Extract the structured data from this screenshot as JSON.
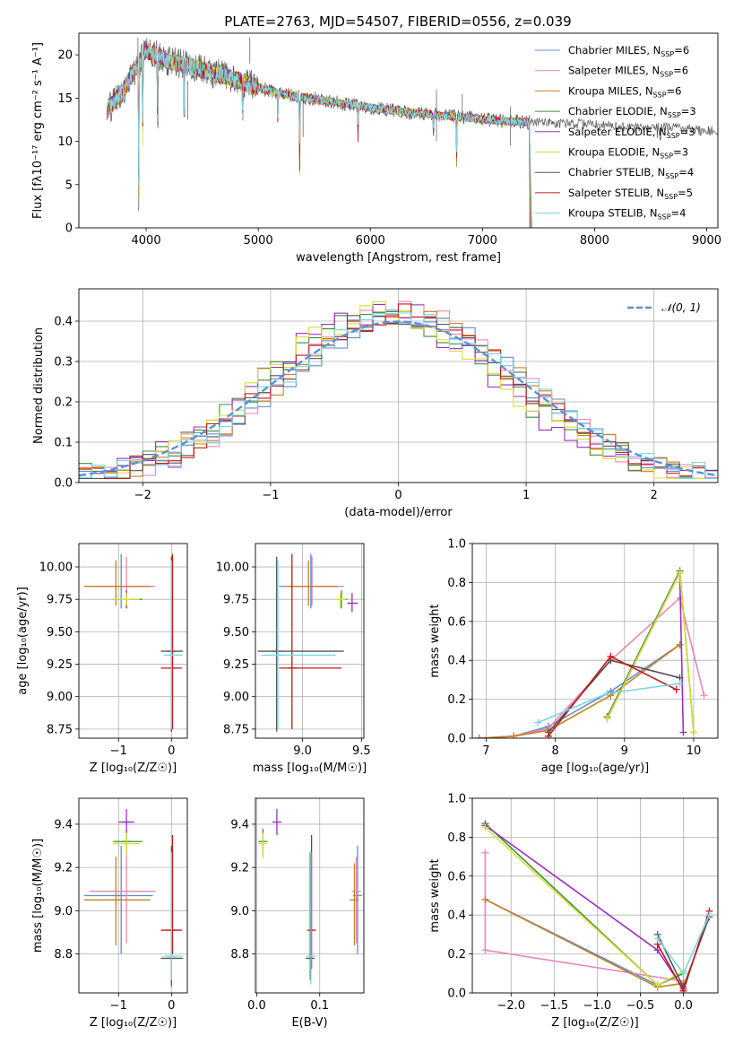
{
  "figure_title": "PLATE=2763, MJD=54507, FIBERID=0556, z=0.039",
  "series": [
    {
      "name": "Chabrier MILES",
      "nssp": "6",
      "color": "#5b8fd6"
    },
    {
      "name": "Salpeter MILES",
      "nssp": "6",
      "color": "#e887b8"
    },
    {
      "name": "Kroupa MILES",
      "nssp": "6",
      "color": "#c8821e"
    },
    {
      "name": "Chabrier ELODIE",
      "nssp": "3",
      "color": "#3f8f3f"
    },
    {
      "name": "Salpeter ELODIE",
      "nssp": "3",
      "color": "#9a2fc0"
    },
    {
      "name": "Kroupa ELODIE",
      "nssp": "3",
      "color": "#d8e030"
    },
    {
      "name": "Chabrier STELIB",
      "nssp": "4",
      "color": "#555555"
    },
    {
      "name": "Salpeter STELIB",
      "nssp": "5",
      "color": "#c41a1a"
    },
    {
      "name": "Kroupa STELIB",
      "nssp": "4",
      "color": "#7ad6e6"
    }
  ],
  "chart_data": [
    {
      "type": "line",
      "title": "PLATE=2763, MJD=54507, FIBERID=0556, z=0.039",
      "xlabel": "wavelength [Angstrom, rest frame]",
      "ylabel": "Flux [fλ10⁻¹⁷ erg cm⁻² s⁻¹ A⁻¹]",
      "xlim": [
        3400,
        9100
      ],
      "ylim": [
        0,
        22.5
      ],
      "xticks": [
        4000,
        5000,
        6000,
        7000,
        8000,
        9000
      ],
      "yticks": [
        0,
        5,
        10,
        15,
        20
      ],
      "spectrum": {
        "x": [
          3650,
          3800,
          4000,
          4150,
          4300,
          4500,
          4700,
          4900,
          5100,
          5300,
          5500,
          5700,
          5900,
          6100,
          6300,
          6500,
          6700,
          6900,
          7100,
          7300,
          7420
        ],
        "y": [
          13.5,
          16,
          20.5,
          19.5,
          19,
          18.3,
          17.5,
          16.7,
          15.8,
          15.3,
          14.9,
          14.5,
          14.1,
          13.7,
          13.4,
          13.2,
          12.9,
          12.7,
          12.4,
          12.3,
          12.2
        ]
      },
      "observed_tail": {
        "x": [
          7420,
          7700,
          8000,
          8300,
          8600,
          8900,
          9100
        ],
        "y": [
          12.2,
          12.1,
          11.9,
          11.6,
          11.6,
          11.3,
          11.2
        ]
      },
      "legend_loc": "upper right"
    },
    {
      "type": "step",
      "xlabel": "(data-model)/error",
      "ylabel": "Normed distribution",
      "xlim": [
        -2.5,
        2.5
      ],
      "ylim": [
        0,
        0.48
      ],
      "xticks": [
        -2,
        -1,
        0,
        1,
        2
      ],
      "yticks": [
        0.0,
        0.1,
        0.2,
        0.3,
        0.4
      ],
      "bin_edges_start": -2.5,
      "bin_width": 0.1,
      "normal_label": "𝒩(0, 1)",
      "normal_color": "#5b8fd6",
      "legend_loc": "upper right"
    },
    {
      "type": "errorbar",
      "xlabel": "Z [log₁₀(Z/Z☉)]",
      "ylabel": "age  [log₁₀(age/yr)]",
      "xlim": [
        -1.75,
        0.3
      ],
      "ylim": [
        8.68,
        10.18
      ],
      "xticks": [
        -1,
        0
      ],
      "yticks": [
        8.75,
        9.0,
        9.25,
        9.5,
        9.75,
        10.0
      ],
      "points": [
        {
          "s": 0,
          "x": -0.95,
          "y": 9.85,
          "xe": [
            -1.65,
            -0.35
          ],
          "ye": [
            9.68,
            10.1
          ]
        },
        {
          "s": 1,
          "x": -0.85,
          "y": 9.85,
          "xe": [
            -1.55,
            -0.3
          ],
          "ye": [
            9.7,
            10.08
          ]
        },
        {
          "s": 2,
          "x": -1.05,
          "y": 9.85,
          "xe": [
            -1.65,
            -0.4
          ],
          "ye": [
            9.7,
            10.05
          ]
        },
        {
          "s": 3,
          "x": -0.85,
          "y": 9.75,
          "xe": [
            -1.1,
            -0.55
          ],
          "ye": [
            9.68,
            9.8
          ]
        },
        {
          "s": 4,
          "x": -0.85,
          "y": 9.75,
          "xe": [
            -1.0,
            -0.7
          ],
          "ye": [
            9.68,
            9.82
          ]
        },
        {
          "s": 5,
          "x": -0.85,
          "y": 9.75,
          "xe": [
            -1.1,
            -0.6
          ],
          "ye": [
            9.7,
            9.8
          ]
        },
        {
          "s": 6,
          "x": 0.0,
          "y": 9.35,
          "xe": [
            -0.2,
            0.22
          ],
          "ye": [
            8.73,
            10.08
          ]
        },
        {
          "s": 7,
          "x": 0.02,
          "y": 9.22,
          "xe": [
            -0.2,
            0.2
          ],
          "ye": [
            8.75,
            10.1
          ]
        },
        {
          "s": 8,
          "x": 0.0,
          "y": 9.32,
          "xe": [
            -0.15,
            0.2
          ],
          "ye": [
            8.75,
            10.05
          ]
        }
      ]
    },
    {
      "type": "errorbar",
      "xlabel": "mass [log₁₀(M/M☉)]",
      "ylabel": "",
      "xlim": [
        8.6,
        9.52
      ],
      "ylim": [
        8.68,
        10.18
      ],
      "xticks": [
        9.0,
        9.5
      ],
      "yticks": [
        8.75,
        9.0,
        9.25,
        9.5,
        9.75,
        10.0
      ],
      "points": [
        {
          "s": 0,
          "x": 9.07,
          "y": 9.85,
          "xe": [
            8.8,
            9.35
          ],
          "ye": [
            9.68,
            10.1
          ]
        },
        {
          "s": 1,
          "x": 9.08,
          "y": 9.85,
          "xe": [
            8.85,
            9.35
          ],
          "ye": [
            9.7,
            10.08
          ]
        },
        {
          "s": 2,
          "x": 9.05,
          "y": 9.85,
          "xe": [
            8.85,
            9.3
          ],
          "ye": [
            9.7,
            10.05
          ]
        },
        {
          "s": 3,
          "x": 9.33,
          "y": 9.75,
          "xe": [
            9.28,
            9.38
          ],
          "ye": [
            9.68,
            9.82
          ]
        },
        {
          "s": 4,
          "x": 9.42,
          "y": 9.72,
          "xe": [
            9.38,
            9.47
          ],
          "ye": [
            9.65,
            9.8
          ]
        },
        {
          "s": 5,
          "x": 9.32,
          "y": 9.75,
          "xe": [
            9.27,
            9.37
          ],
          "ye": [
            9.68,
            9.8
          ]
        },
        {
          "s": 6,
          "x": 8.78,
          "y": 9.35,
          "xe": [
            8.62,
            9.35
          ],
          "ye": [
            8.73,
            10.08
          ]
        },
        {
          "s": 7,
          "x": 8.91,
          "y": 9.22,
          "xe": [
            8.8,
            9.33
          ],
          "ye": [
            8.75,
            10.1
          ]
        },
        {
          "s": 8,
          "x": 8.79,
          "y": 9.32,
          "xe": [
            8.65,
            9.28
          ],
          "ye": [
            8.75,
            10.05
          ]
        }
      ]
    },
    {
      "type": "line",
      "xlabel": "age  [log₁₀(age/yr)]",
      "ylabel": "mass weight",
      "xlim": [
        6.8,
        10.35
      ],
      "ylim": [
        0,
        1.0
      ],
      "xticks": [
        7,
        8,
        9,
        10
      ],
      "yticks": [
        0.0,
        0.2,
        0.4,
        0.6,
        0.8,
        1.0
      ],
      "lines": [
        {
          "s": 0,
          "x": [
            6.9,
            7.4,
            7.9,
            8.8,
            9.8
          ],
          "y": [
            0.0,
            0.01,
            0.06,
            0.24,
            0.48
          ]
        },
        {
          "s": 1,
          "x": 6.9,
          "y": 0.0
        },
        {
          "s": 1,
          "x": [
            6.9,
            7.4,
            7.9,
            8.8,
            9.8,
            10.15
          ],
          "y": [
            0.0,
            0.01,
            0.05,
            0.4,
            0.72,
            0.22
          ]
        },
        {
          "s": 2,
          "x": [
            6.9,
            7.4,
            7.9,
            8.8,
            9.8
          ],
          "y": [
            0.0,
            0.01,
            0.04,
            0.22,
            0.48
          ]
        },
        {
          "s": 3,
          "x": [
            8.75,
            9.8,
            10.0
          ],
          "y": [
            0.11,
            0.86,
            0.03
          ]
        },
        {
          "s": 4,
          "x": [
            8.75,
            9.8,
            9.85
          ],
          "y": [
            0.1,
            0.85,
            0.03
          ]
        },
        {
          "s": 5,
          "x": [
            8.75,
            9.8,
            10.0
          ],
          "y": [
            0.1,
            0.85,
            0.03
          ]
        },
        {
          "s": 6,
          "x": [
            7.9,
            8.8,
            9.8
          ],
          "y": [
            0.03,
            0.4,
            0.31
          ]
        },
        {
          "s": 7,
          "x": [
            7.9,
            8.8,
            9.75
          ],
          "y": [
            0.01,
            0.42,
            0.25
          ]
        },
        {
          "s": 8,
          "x": [
            7.75,
            8.75,
            9.8
          ],
          "y": [
            0.08,
            0.23,
            0.28
          ]
        }
      ]
    },
    {
      "type": "errorbar",
      "xlabel": "Z [log₁₀(Z/Z☉)]",
      "ylabel": "mass [log₁₀(M/M☉)]",
      "xlim": [
        -1.75,
        0.3
      ],
      "ylim": [
        8.62,
        9.52
      ],
      "xticks": [
        -1,
        0
      ],
      "yticks": [
        8.8,
        9.0,
        9.2,
        9.4
      ],
      "points": [
        {
          "s": 0,
          "x": -0.95,
          "y": 9.07,
          "xe": [
            -1.65,
            -0.35
          ],
          "ye": [
            8.8,
            9.3
          ]
        },
        {
          "s": 1,
          "x": -0.85,
          "y": 9.09,
          "xe": [
            -1.55,
            -0.3
          ],
          "ye": [
            8.85,
            9.35
          ]
        },
        {
          "s": 2,
          "x": -1.05,
          "y": 9.05,
          "xe": [
            -1.65,
            -0.4
          ],
          "ye": [
            8.84,
            9.25
          ]
        },
        {
          "s": 3,
          "x": -0.85,
          "y": 9.32,
          "xe": [
            -1.1,
            -0.55
          ],
          "ye": [
            9.27,
            9.37
          ]
        },
        {
          "s": 4,
          "x": -0.85,
          "y": 9.41,
          "xe": [
            -1.0,
            -0.7
          ],
          "ye": [
            9.36,
            9.47
          ]
        },
        {
          "s": 5,
          "x": -0.85,
          "y": 9.31,
          "xe": [
            -1.1,
            -0.6
          ],
          "ye": [
            9.26,
            9.36
          ]
        },
        {
          "s": 6,
          "x": 0.0,
          "y": 8.78,
          "xe": [
            -0.2,
            0.22
          ],
          "ye": [
            8.65,
            9.3
          ]
        },
        {
          "s": 7,
          "x": 0.02,
          "y": 8.91,
          "xe": [
            -0.2,
            0.2
          ],
          "ye": [
            8.8,
            9.35
          ]
        },
        {
          "s": 8,
          "x": 0.0,
          "y": 8.79,
          "xe": [
            -0.15,
            0.2
          ],
          "ye": [
            8.68,
            9.27
          ]
        }
      ]
    },
    {
      "type": "errorbar",
      "xlabel": "E(B-V)",
      "ylabel": "",
      "xlim": [
        -0.002,
        0.17
      ],
      "ylim": [
        8.62,
        9.52
      ],
      "xticks": [
        0.0,
        0.1
      ],
      "yticks": [
        8.8,
        9.0,
        9.2,
        9.4
      ],
      "points": [
        {
          "s": 0,
          "x": 0.16,
          "y": 9.07,
          "ye": [
            8.8,
            9.3
          ]
        },
        {
          "s": 1,
          "x": 0.158,
          "y": 9.09,
          "ye": [
            8.85,
            9.25
          ]
        },
        {
          "s": 2,
          "x": 0.155,
          "y": 9.05,
          "ye": [
            8.84,
            9.22
          ]
        },
        {
          "s": 3,
          "x": 0.01,
          "y": 9.32,
          "ye": [
            9.26,
            9.38
          ]
        },
        {
          "s": 4,
          "x": 0.032,
          "y": 9.41,
          "ye": [
            9.35,
            9.47
          ]
        },
        {
          "s": 5,
          "x": 0.01,
          "y": 9.31,
          "ye": [
            9.24,
            9.36
          ]
        },
        {
          "s": 6,
          "x": 0.085,
          "y": 8.78,
          "ye": [
            8.68,
            9.27
          ]
        },
        {
          "s": 7,
          "x": 0.087,
          "y": 8.91,
          "ye": [
            8.73,
            9.35
          ]
        },
        {
          "s": 8,
          "x": 0.086,
          "y": 8.79,
          "ye": [
            8.66,
            9.27
          ]
        }
      ]
    },
    {
      "type": "line",
      "xlabel": "Z [log₁₀(Z/Z☉)]",
      "ylabel": "mass weight",
      "xlim": [
        -2.45,
        0.4
      ],
      "ylim": [
        0,
        1.0
      ],
      "xticks": [
        -2.0,
        -1.5,
        -1.0,
        -0.5,
        0.0
      ],
      "yticks": [
        0.0,
        0.2,
        0.4,
        0.6,
        0.8,
        1.0
      ],
      "lines": [
        {
          "s": 0,
          "x": [
            -2.3,
            -0.3,
            0.0
          ],
          "y": [
            0.48,
            0.04,
            0.1
          ]
        },
        {
          "s": 1,
          "x": [
            -2.3,
            -2.3,
            0.0
          ],
          "y": [
            0.72,
            0.22,
            0.06
          ]
        },
        {
          "s": 2,
          "x": [
            -2.3,
            -0.3,
            0.0
          ],
          "y": [
            0.48,
            0.03,
            0.05
          ]
        },
        {
          "s": 3,
          "x": [
            -2.3,
            -0.3,
            0.0
          ],
          "y": [
            0.87,
            0.04,
            0.1
          ]
        },
        {
          "s": 4,
          "x": [
            -2.3,
            -0.3,
            0.0
          ],
          "y": [
            0.86,
            0.22,
            0.02
          ]
        },
        {
          "s": 5,
          "x": [
            -2.3,
            -0.3,
            0.0
          ],
          "y": [
            0.85,
            0.04,
            0.11
          ]
        },
        {
          "s": 6,
          "x": [
            -0.3,
            0.0,
            0.3
          ],
          "y": [
            0.3,
            0.03,
            0.39
          ]
        },
        {
          "s": 7,
          "x": [
            -0.3,
            0.0,
            0.3
          ],
          "y": [
            0.25,
            0.01,
            0.42
          ]
        },
        {
          "s": 8,
          "x": [
            -0.3,
            0.0,
            0.3
          ],
          "y": [
            0.28,
            0.1,
            0.4
          ]
        }
      ]
    }
  ]
}
